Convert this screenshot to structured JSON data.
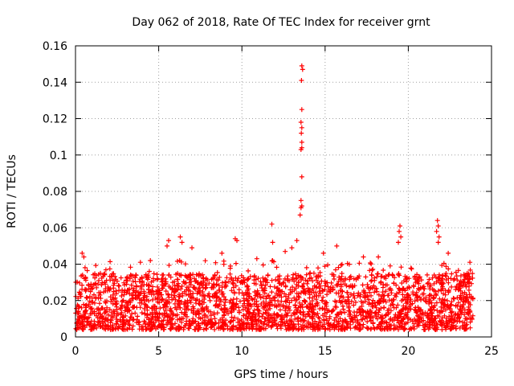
{
  "chart_data": {
    "type": "scatter",
    "title": "Day 062 of 2018, Rate Of TEC Index for receiver grnt",
    "xlabel": "GPS time / hours",
    "ylabel": "ROTI / TECUs",
    "xlim": [
      0,
      25
    ],
    "ylim": [
      0,
      0.16
    ],
    "x_ticks": [
      0,
      5,
      10,
      15,
      20,
      25
    ],
    "x_tick_labels": [
      "0",
      "5",
      "10",
      "15",
      "20",
      "25"
    ],
    "y_ticks": [
      0,
      0.02,
      0.04,
      0.06,
      0.08,
      0.1,
      0.12,
      0.14,
      0.16
    ],
    "y_tick_labels": [
      "0",
      "0.02",
      "0.04",
      "0.06",
      "0.08",
      "0.1",
      "0.12",
      "0.14",
      "0.16"
    ],
    "grid": true,
    "marker": "+",
    "color": "#ff0000",
    "series": [
      {
        "name": "ROTI",
        "description_of_bulk": "dense band of points from 0 to 24 h, mostly between 0.005 and 0.035 TECU/min",
        "x_range": [
          0,
          23.9
        ],
        "bulk_y_range": [
          0.004,
          0.035
        ],
        "notable_points": [
          {
            "x": 13.6,
            "y": 0.149
          },
          {
            "x": 13.65,
            "y": 0.147
          },
          {
            "x": 13.58,
            "y": 0.141
          },
          {
            "x": 13.6,
            "y": 0.125
          },
          {
            "x": 13.55,
            "y": 0.118
          },
          {
            "x": 13.6,
            "y": 0.115
          },
          {
            "x": 13.57,
            "y": 0.112
          },
          {
            "x": 13.6,
            "y": 0.107
          },
          {
            "x": 13.6,
            "y": 0.104
          },
          {
            "x": 13.55,
            "y": 0.103
          },
          {
            "x": 13.6,
            "y": 0.088
          },
          {
            "x": 13.55,
            "y": 0.075
          },
          {
            "x": 13.6,
            "y": 0.072
          },
          {
            "x": 13.55,
            "y": 0.071
          },
          {
            "x": 13.5,
            "y": 0.067
          },
          {
            "x": 11.8,
            "y": 0.062
          },
          {
            "x": 11.85,
            "y": 0.052
          },
          {
            "x": 9.6,
            "y": 0.054
          },
          {
            "x": 9.7,
            "y": 0.053
          },
          {
            "x": 6.3,
            "y": 0.055
          },
          {
            "x": 6.4,
            "y": 0.052
          },
          {
            "x": 19.5,
            "y": 0.061
          },
          {
            "x": 19.45,
            "y": 0.058
          },
          {
            "x": 19.55,
            "y": 0.055
          },
          {
            "x": 19.4,
            "y": 0.052
          },
          {
            "x": 21.75,
            "y": 0.064
          },
          {
            "x": 21.8,
            "y": 0.061
          },
          {
            "x": 21.7,
            "y": 0.058
          },
          {
            "x": 21.85,
            "y": 0.055
          },
          {
            "x": 21.8,
            "y": 0.052
          },
          {
            "x": 0.4,
            "y": 0.046
          },
          {
            "x": 0.5,
            "y": 0.044
          },
          {
            "x": 5.6,
            "y": 0.053
          },
          {
            "x": 5.5,
            "y": 0.05
          },
          {
            "x": 7,
            "y": 0.049
          },
          {
            "x": 8.8,
            "y": 0.046
          },
          {
            "x": 14.9,
            "y": 0.046
          },
          {
            "x": 15.7,
            "y": 0.05
          },
          {
            "x": 17.3,
            "y": 0.044
          },
          {
            "x": 18.2,
            "y": 0.044
          },
          {
            "x": 3.9,
            "y": 0.041
          },
          {
            "x": 4.5,
            "y": 0.042
          },
          {
            "x": 13.0,
            "y": 0.049
          },
          {
            "x": 13.3,
            "y": 0.053
          },
          {
            "x": 12.6,
            "y": 0.047
          },
          {
            "x": 10.9,
            "y": 0.043
          },
          {
            "x": 22.4,
            "y": 0.046
          },
          {
            "x": 23.7,
            "y": 0.041
          }
        ]
      }
    ]
  }
}
